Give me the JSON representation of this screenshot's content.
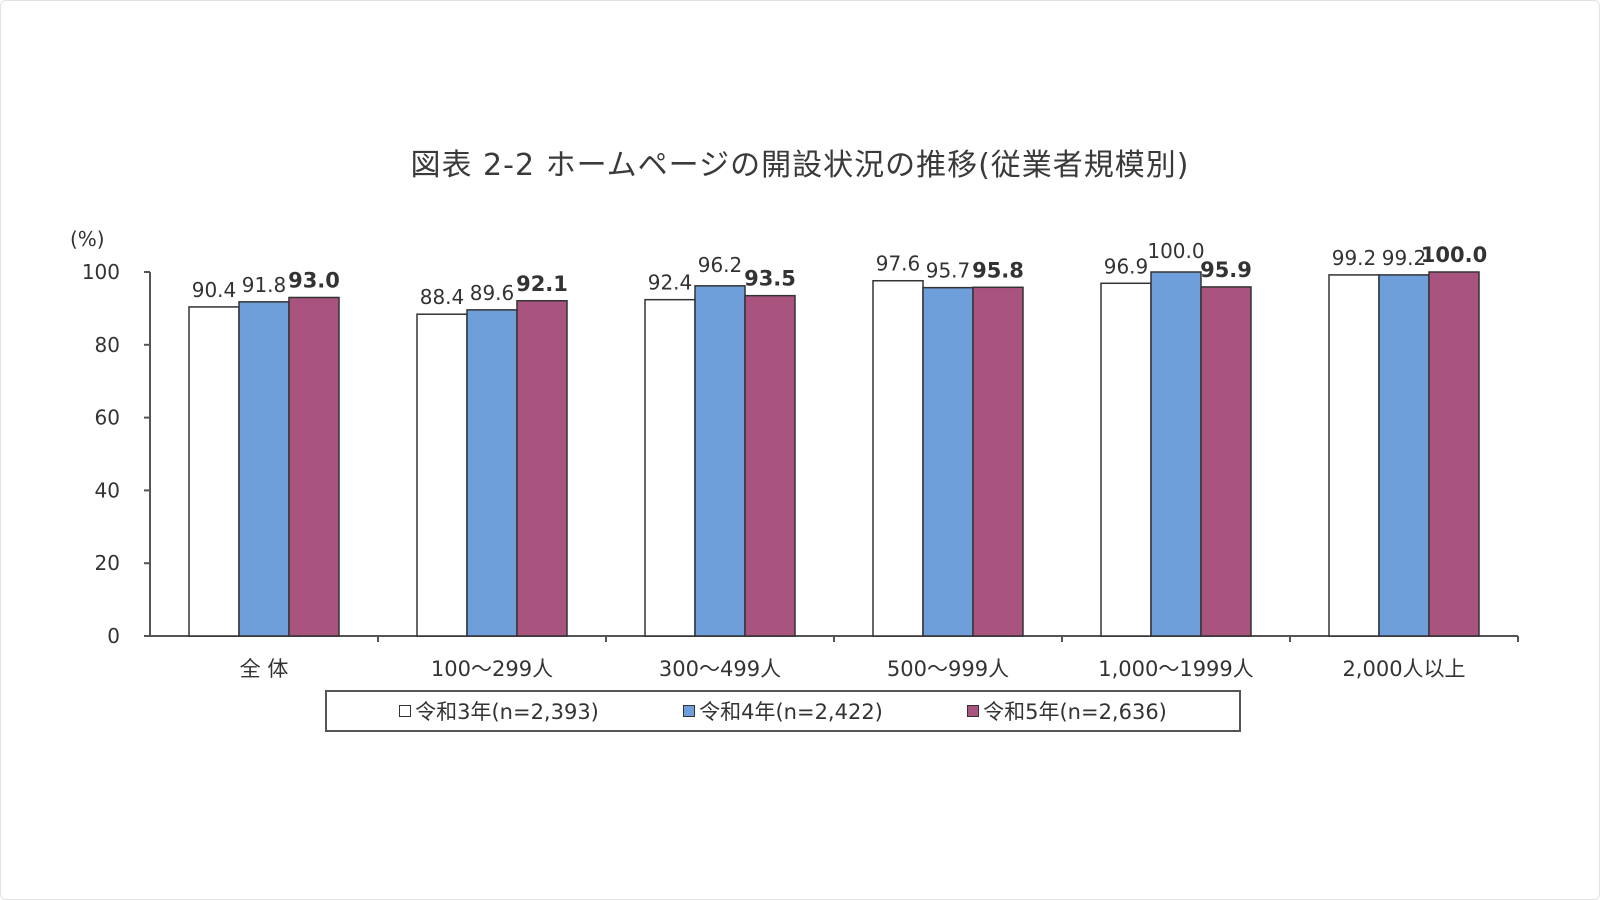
{
  "chart_data": {
    "type": "bar",
    "title": "図表 2-2 ホームページの開設状況の推移(従業者規模別)",
    "ylabel": "(%)",
    "ylim": [
      0,
      100
    ],
    "yticks": [
      "0",
      "20",
      "40",
      "60",
      "80",
      "100"
    ],
    "categories": [
      "全 体",
      "100～299人",
      "300～499人",
      "500～999人",
      "1,000～1999人",
      "2,000人以上"
    ],
    "series": [
      {
        "name": "令和3年(n=2,393)",
        "color": "#ffffff",
        "values": [
          90.4,
          88.4,
          92.4,
          97.6,
          96.9,
          99.2
        ],
        "labels": [
          "90.4",
          "88.4",
          "92.4",
          "97.6",
          "96.9",
          "99.2"
        ],
        "bold": false
      },
      {
        "name": "令和4年(n=2,422)",
        "color": "#6f9fdb",
        "values": [
          91.8,
          89.6,
          96.2,
          95.7,
          100.0,
          99.2
        ],
        "labels": [
          "91.8",
          "89.6",
          "96.2",
          "95.7",
          "100.0",
          "99.2"
        ],
        "bold": false
      },
      {
        "name": "令和5年(n=2,636)",
        "color": "#a8547f",
        "values": [
          93.0,
          92.1,
          93.5,
          95.8,
          95.9,
          100.0
        ],
        "labels": [
          "93.0",
          "92.1",
          "93.5",
          "95.8",
          "95.9",
          "100.0"
        ],
        "bold": true
      }
    ],
    "grid": false,
    "legend_position": "bottom"
  }
}
